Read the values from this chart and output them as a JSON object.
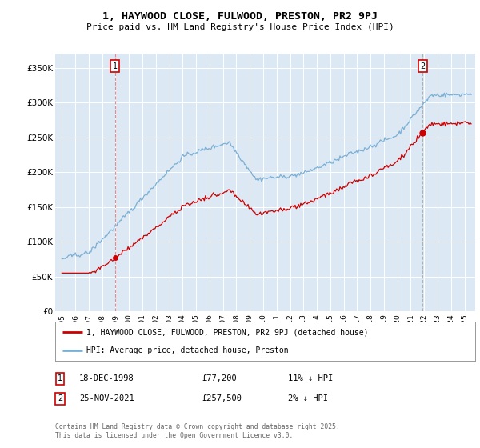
{
  "title": "1, HAYWOOD CLOSE, FULWOOD, PRESTON, PR2 9PJ",
  "subtitle": "Price paid vs. HM Land Registry's House Price Index (HPI)",
  "background_color": "#dce9f5",
  "sale1_date_label": "18-DEC-1998",
  "sale1_price_label": "£77,200",
  "sale1_pct_label": "11% ↓ HPI",
  "sale2_date_label": "25-NOV-2021",
  "sale2_price_label": "£257,500",
  "sale2_pct_label": "2% ↓ HPI",
  "legend_line1": "1, HAYWOOD CLOSE, FULWOOD, PRESTON, PR2 9PJ (detached house)",
  "legend_line2": "HPI: Average price, detached house, Preston",
  "footnote": "Contains HM Land Registry data © Crown copyright and database right 2025.\nThis data is licensed under the Open Government Licence v3.0.",
  "ylabel_ticks": [
    "£0",
    "£50K",
    "£100K",
    "£150K",
    "£200K",
    "£250K",
    "£300K",
    "£350K"
  ],
  "ylim": [
    0,
    370000
  ],
  "red_color": "#cc0000",
  "blue_color": "#7bafd4",
  "grid_color": "#ffffff",
  "sale1_vline_color": "#e08080",
  "sale2_vline_color": "#b0b0b0"
}
